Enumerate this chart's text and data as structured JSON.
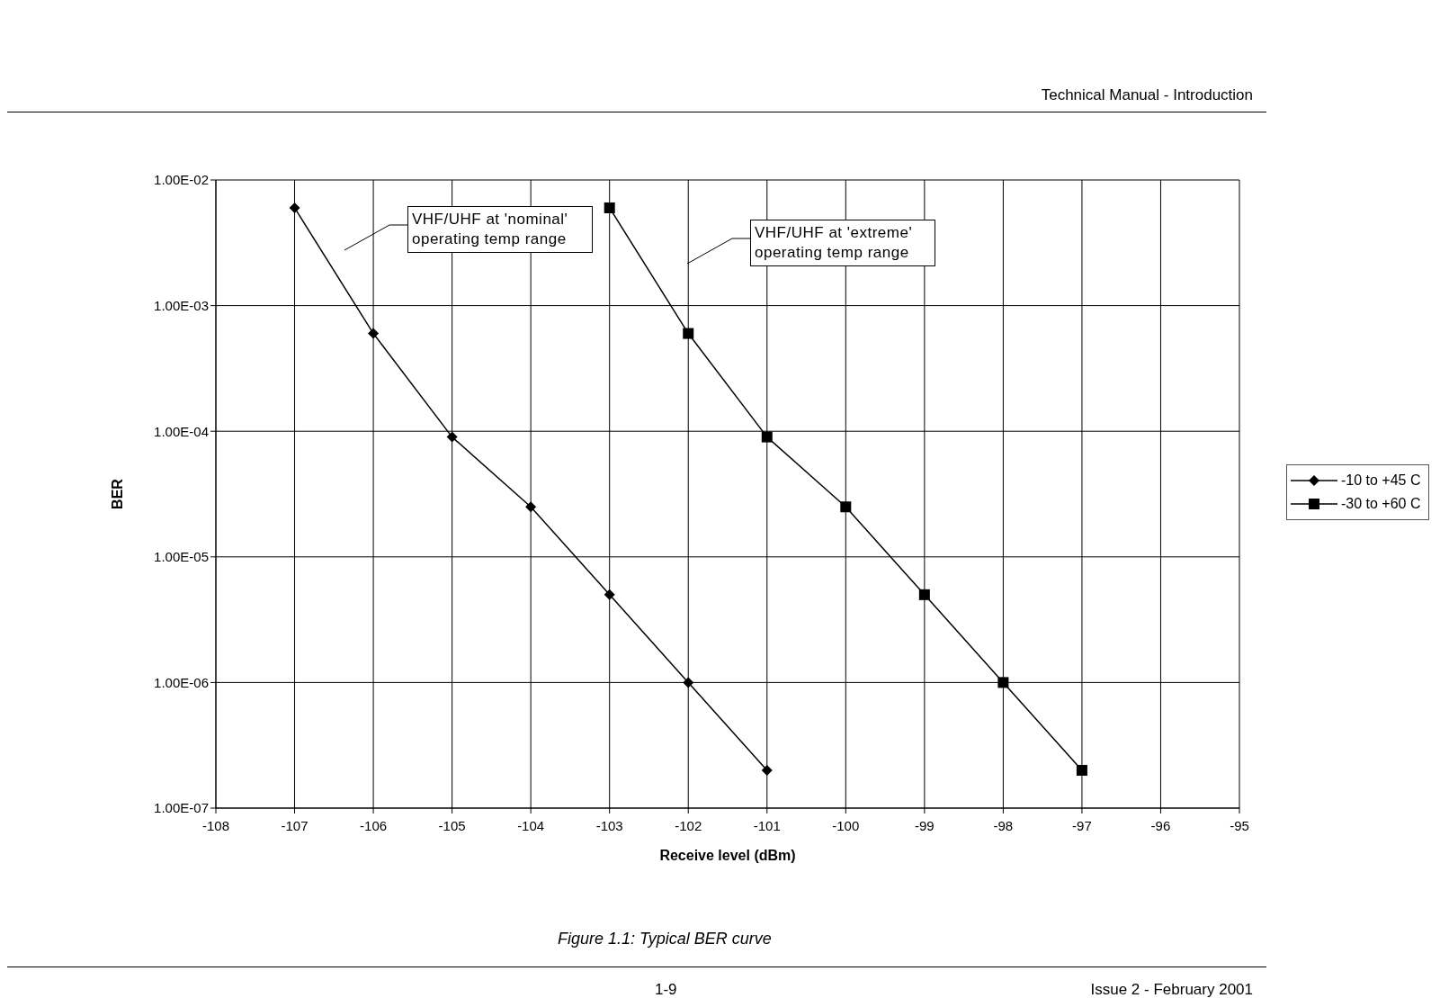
{
  "chart_data": {
    "type": "line",
    "title": "Figure 1.1: Typical BER curve",
    "xlabel": "Receive level (dBm)",
    "ylabel": "BER",
    "x": [
      -107,
      -106,
      -105,
      -104,
      -103,
      -102,
      -101
    ],
    "series": [
      {
        "name": "-10 to +45 C",
        "color": "#000000",
        "marker": "diamond",
        "values": [
          0.006,
          0.0006,
          9e-05,
          2.5e-05,
          5e-06,
          1e-06,
          2e-07
        ]
      },
      {
        "name": "-30 to +60 C",
        "color": "#000000",
        "marker": "square",
        "x": [
          -103,
          -102,
          -101,
          -100,
          -99,
          -98,
          -97
        ],
        "values": [
          0.006,
          0.0006,
          9e-05,
          2.5e-05,
          5e-06,
          1e-06,
          2e-07
        ]
      }
    ],
    "log": "y",
    "xlim": [
      -108,
      -95
    ],
    "xticks": [
      -108,
      -107,
      -106,
      -105,
      -104,
      -103,
      -102,
      -101,
      -100,
      -99,
      -98,
      -97,
      -96,
      -95
    ],
    "ylim": [
      1e-07,
      0.01
    ],
    "yticks": [
      {
        "value": 1e-07,
        "label": "1.00E-07"
      },
      {
        "value": 1e-06,
        "label": "1.00E-06"
      },
      {
        "value": 1e-05,
        "label": "1.00E-05"
      },
      {
        "value": 0.0001,
        "label": "1.00E-04"
      },
      {
        "value": 0.001,
        "label": "1.00E-03"
      },
      {
        "value": 0.01,
        "label": "1.00E-02"
      }
    ],
    "grid": true,
    "legend": "right",
    "annotations": [
      "Technical Manual - Introduction",
      "VHF/UHF at 'nominal' operating temp range",
      "VHF/UHF at 'extreme' operating temp range",
      "1-9",
      "Issue 2 - February 2001"
    ]
  }
}
